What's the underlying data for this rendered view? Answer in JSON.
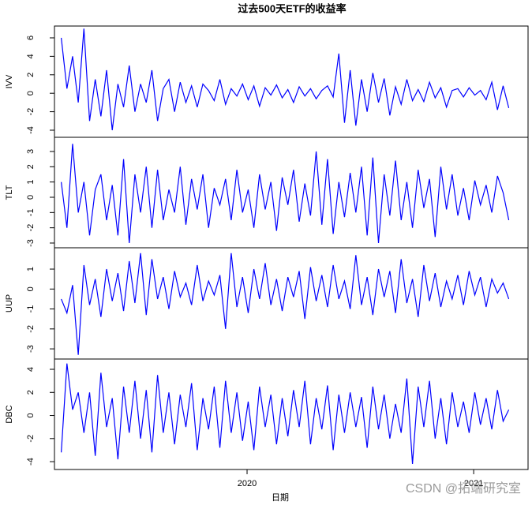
{
  "chart_data": {
    "type": "line",
    "title": "过去500天ETF的收益率",
    "x_label": "日期",
    "color": "#0000ff",
    "xlim": [
      2019.15,
      2021.24
    ],
    "xticks": [
      2020,
      2021
    ],
    "x": [
      2019.18,
      2019.205,
      2019.23,
      2019.255,
      2019.28,
      2019.305,
      2019.33,
      2019.355,
      2019.38,
      2019.405,
      2019.43,
      2019.455,
      2019.48,
      2019.505,
      2019.53,
      2019.555,
      2019.58,
      2019.605,
      2019.63,
      2019.655,
      2019.68,
      2019.705,
      2019.73,
      2019.755,
      2019.78,
      2019.805,
      2019.83,
      2019.855,
      2019.88,
      2019.905,
      2019.93,
      2019.955,
      2019.98,
      2020.005,
      2020.03,
      2020.055,
      2020.08,
      2020.105,
      2020.13,
      2020.155,
      2020.18,
      2020.205,
      2020.23,
      2020.255,
      2020.28,
      2020.305,
      2020.33,
      2020.355,
      2020.38,
      2020.405,
      2020.43,
      2020.455,
      2020.48,
      2020.505,
      2020.53,
      2020.555,
      2020.58,
      2020.605,
      2020.63,
      2020.655,
      2020.68,
      2020.705,
      2020.73,
      2020.755,
      2020.78,
      2020.805,
      2020.83,
      2020.855,
      2020.88,
      2020.905,
      2020.93,
      2020.955,
      2020.98,
      2021.005,
      2021.03,
      2021.055,
      2021.08,
      2021.105,
      2021.13,
      2021.155
    ],
    "panels": [
      {
        "ylabel": "IVV",
        "ylim": [
          -4.77,
          7.28
        ],
        "yticks": [
          -4,
          -2,
          0,
          2,
          4,
          6
        ],
        "values": [
          6,
          0.5,
          4,
          -1,
          7,
          -3,
          1.5,
          -2.5,
          2.5,
          -4,
          1,
          -1.5,
          3,
          -2,
          1,
          -1,
          2.5,
          -3,
          0.5,
          1.5,
          -2,
          1.2,
          -1,
          0.8,
          -1.5,
          1,
          0.3,
          -0.8,
          1.5,
          -1.2,
          0.5,
          -0.3,
          1,
          -0.7,
          0.8,
          -1.4,
          0.6,
          -0.2,
          0.9,
          -0.5,
          0.4,
          -1,
          0.7,
          -0.3,
          0.5,
          -0.6,
          0.3,
          0.8,
          -0.4,
          4.3,
          -3.2,
          2.5,
          -3.5,
          1.5,
          -2,
          2.2,
          -1,
          1.6,
          -2.4,
          0.7,
          -1.2,
          1.5,
          -0.8,
          0.4,
          -0.9,
          1.2,
          -0.5,
          0.6,
          -1.5,
          0.3,
          0.5,
          -0.4,
          0.6,
          -0.2,
          0.3,
          -0.7,
          1.2,
          -1.8,
          0.8,
          -1.6
        ]
      },
      {
        "ylabel": "TLT",
        "ylim": [
          -3.31,
          3.93
        ],
        "yticks": [
          -3,
          -2,
          -1,
          0,
          1,
          2,
          3
        ],
        "values": [
          1,
          -2,
          3.5,
          -1,
          1,
          -2.5,
          0.5,
          1.5,
          -1.5,
          0.8,
          -2.5,
          2.5,
          -3,
          1.5,
          -1,
          2,
          -2,
          1.8,
          -1.5,
          0.5,
          -1,
          2,
          -1.8,
          1.2,
          -0.8,
          1.5,
          -2,
          0.6,
          -0.5,
          1.2,
          -1.5,
          1.8,
          -1,
          0.5,
          -2,
          1.5,
          -0.8,
          1,
          -2.2,
          1.3,
          -0.5,
          1.8,
          -1.6,
          0.9,
          -1.2,
          3,
          -1.8,
          2.5,
          -2.4,
          1,
          -1.3,
          1.6,
          -1,
          2,
          -2.5,
          2.6,
          -3,
          1.5,
          -1.2,
          2.4,
          -1.5,
          1,
          -2,
          1.8,
          -0.7,
          1.2,
          -2.6,
          2,
          -0.8,
          1.5,
          -1.2,
          0.6,
          -1.5,
          1.1,
          -0.5,
          0.8,
          -1,
          1.4,
          0.3,
          -1.5
        ]
      },
      {
        "ylabel": "UUP",
        "ylim": [
          -3.51,
          2.07
        ],
        "yticks": [
          -3,
          -2,
          -1,
          0,
          1
        ],
        "values": [
          -0.5,
          -1.2,
          0.2,
          -3.3,
          1.2,
          -0.8,
          0.5,
          -1.4,
          1,
          -0.6,
          0.8,
          -1.1,
          1.4,
          -0.7,
          1.8,
          -1.3,
          1.5,
          -0.5,
          0.6,
          -1,
          0.9,
          -0.4,
          0.3,
          -0.8,
          1.2,
          -0.6,
          0.4,
          -0.3,
          0.7,
          -2,
          1.8,
          -0.9,
          0.6,
          -1.2,
          1,
          -0.5,
          1.3,
          -0.8,
          0.5,
          -1.1,
          0.6,
          -0.4,
          0.9,
          -1.5,
          1.1,
          -0.6,
          0.7,
          -0.9,
          1.2,
          -0.5,
          0.4,
          -1,
          1.7,
          -0.8,
          0.6,
          -1.3,
          1,
          -0.4,
          0.9,
          -1.2,
          1.5,
          -0.7,
          0.5,
          -1.4,
          1.2,
          -0.6,
          0.8,
          -0.9,
          0.4,
          -0.5,
          0.7,
          -0.8,
          0.9,
          -0.3,
          0.6,
          -0.9,
          0.5,
          -0.2,
          0.3,
          -0.5
        ]
      },
      {
        "ylabel": "DBC",
        "ylim": [
          -4.68,
          4.89
        ],
        "yticks": [
          -4,
          -2,
          0,
          2,
          4
        ],
        "values": [
          -3.2,
          4.5,
          0.5,
          2,
          -1.5,
          2,
          -3.5,
          3.7,
          -1,
          1.5,
          -3.8,
          2.5,
          -1.5,
          3,
          -2,
          2.2,
          -3.2,
          3.5,
          -1.5,
          2,
          -2.5,
          1.8,
          -1,
          2.8,
          -3,
          1.5,
          -1.2,
          2.5,
          -2.8,
          3,
          -1.5,
          2,
          -2.2,
          1.2,
          -3,
          2.5,
          -1,
          1.8,
          -2.5,
          1.5,
          -1.8,
          2.2,
          -1,
          3,
          -2.5,
          1.5,
          -1.2,
          2.6,
          -3,
          1.8,
          -1.5,
          2,
          -1,
          1.6,
          -2.8,
          2.5,
          -1.2,
          1.8,
          -2,
          1,
          -1.5,
          3.2,
          -4.2,
          2.5,
          -1,
          3,
          -2,
          1.5,
          -2.5,
          2,
          -1,
          1.2,
          -1.5,
          2,
          -0.8,
          1.5,
          -1.2,
          2.2,
          -0.5,
          0.5
        ]
      }
    ]
  },
  "watermark": "CSDN @拓端研究室"
}
